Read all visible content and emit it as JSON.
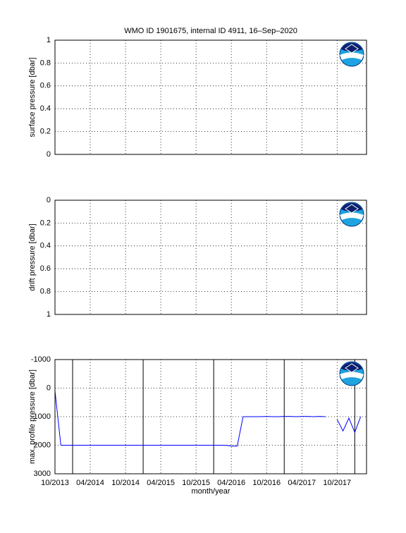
{
  "chart_data": [
    {
      "type": "line",
      "title": "WMO ID 1901675, internal ID 4911, 16–Sep–2020",
      "ylabel": "surface pressure [dbar]",
      "ylim": [
        0,
        1
      ],
      "yticks": [
        0,
        0.2,
        0.4,
        0.6,
        0.8,
        1
      ],
      "reversed": false,
      "grid": true,
      "share_x": true
    },
    {
      "type": "line",
      "ylabel": "drift pressure [dbar]",
      "ylim": [
        0,
        1
      ],
      "yticks": [
        0,
        0.2,
        0.4,
        0.6,
        0.8,
        1
      ],
      "reversed": true,
      "grid": true,
      "share_x": true
    },
    {
      "type": "line",
      "ylabel": "max. profile pressure [dbar]",
      "xlabel": "month/year",
      "xlim": [
        "10/2013",
        "03/2018"
      ],
      "xticks": [
        "10/2013",
        "04/2014",
        "10/2014",
        "04/2015",
        "10/2015",
        "04/2016",
        "10/2016",
        "04/2017",
        "10/2017"
      ],
      "ylim": [
        -1000,
        3000
      ],
      "yticks": [
        -1000,
        0,
        1000,
        2000,
        3000
      ],
      "reversed": true,
      "grid": true,
      "vlines": [
        "01/2014",
        "01/2015",
        "01/2016",
        "01/2017",
        "01/2018"
      ],
      "vline_color": "#000000",
      "series": [
        {
          "color": "#0000ff",
          "x": [
            "10/2013",
            "11/2013",
            "12/2013",
            "01/2014",
            "02/2014",
            "03/2014",
            "04/2014",
            "05/2014",
            "06/2014",
            "07/2014",
            "08/2014",
            "09/2014",
            "10/2014",
            "11/2014",
            "12/2014",
            "01/2015",
            "02/2015",
            "03/2015",
            "04/2015",
            "05/2015",
            "06/2015",
            "07/2015",
            "08/2015",
            "09/2015",
            "10/2015",
            "11/2015",
            "12/2015",
            "01/2016",
            "02/2016",
            "03/2016",
            "04/2016",
            "05/2016",
            "06/2016",
            "07/2016",
            "08/2016",
            "09/2016",
            "10/2016",
            "11/2016",
            "12/2016",
            "01/2017",
            "02/2017",
            "03/2017",
            "04/2017",
            "05/2017",
            "06/2017",
            "07/2017",
            "08/2017",
            "09/2017",
            "10/2017",
            "11/2017",
            "12/2017",
            "01/2018",
            "02/2018"
          ],
          "values": [
            100,
            2000,
            2000,
            2000,
            2000,
            2000,
            2000,
            2000,
            2000,
            2000,
            2000,
            2000,
            2000,
            2000,
            2000,
            2000,
            2000,
            2000,
            2000,
            2000,
            2000,
            2000,
            2000,
            2000,
            2000,
            2000,
            2000,
            2000,
            2000,
            2000,
            2030,
            2030,
            1000,
            1000,
            1000,
            1000,
            990,
            1000,
            1000,
            990,
            990,
            1000,
            990,
            990,
            1000,
            990,
            1000,
            null,
            1100,
            1500,
            1050,
            1550,
            1000
          ]
        }
      ]
    }
  ]
}
